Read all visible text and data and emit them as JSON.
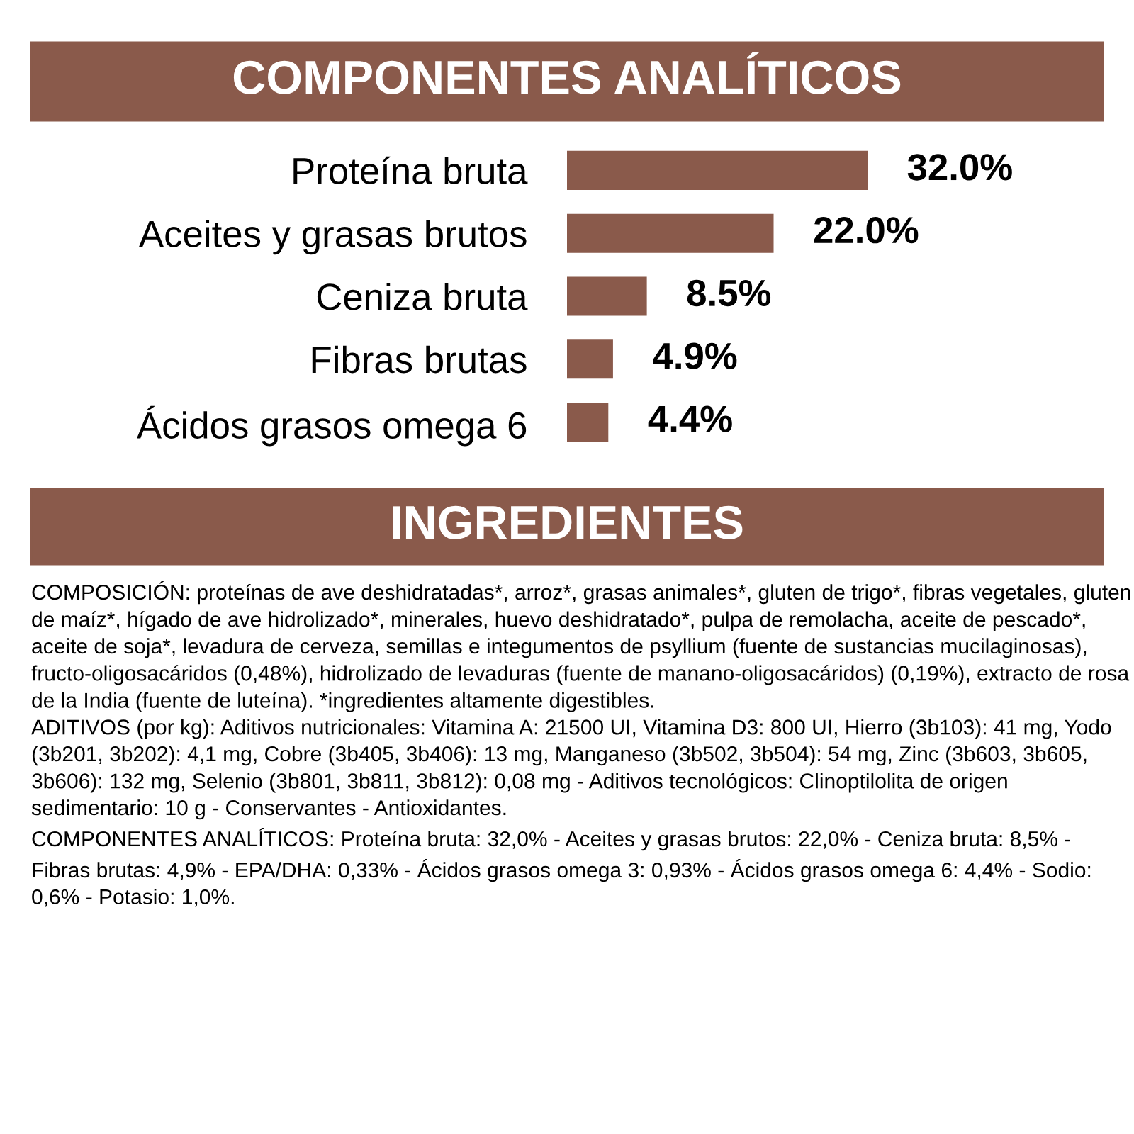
{
  "chart_data": {
    "type": "bar",
    "orientation": "horizontal",
    "title": "COMPONENTES ANALÍTICOS",
    "categories": [
      "Proteína bruta",
      "Aceites y grasas brutos",
      "Ceniza bruta",
      "Fibras brutas",
      "Ácidos grasos omega 6"
    ],
    "values": [
      32.0,
      22.0,
      8.5,
      4.9,
      4.4
    ],
    "value_labels": [
      "32.0%",
      "22.0%",
      "8.5%",
      "4.9%",
      "4.4%"
    ],
    "color": "#8a5a4b",
    "annotations": [
      "INGREDIENTES",
      "COMPOSICIÓN: proteínas de ave deshidratadas*, arroz*, grasas animales*, gluten de trigo*, fibras vegetales, gluten de maíz*, hígado de ave hidrolizado*, minerales, huevo deshidratado*, pulpa de remolacha, aceite de pescado*, aceite de soja*, levadura de cerveza, semillas e integumentos de psyllium (fuente de sustancias mucilaginosas), fructo-oligosacáridos (0,48%), hidrolizado de levaduras (fuente de manano-oligosacáridos) (0,19%), extracto de rosa de la India (fuente de luteína). *ingredientes altamente digestibles.",
      "ADITIVOS (por kg): Aditivos nutricionales: Vitamina A: 21500 UI, Vitamina D3: 800 UI, Hierro (3b103): 41 mg, Yodo (3b201, 3b202): 4,1 mg, Cobre (3b405, 3b406): 13 mg, Manganeso (3b502, 3b504): 54 mg, Zinc (3b603, 3b605, 3b606): 132 mg, Selenio (3b801, 3b811, 3b812): 0,08 mg - Aditivos tecnológicos: Clinoptilolita de origen sedimentario: 10 g - Conservantes - Antioxidantes.",
      "COMPONENTES ANALÍTICOS: Proteína bruta: 32,0% - Aceites y grasas brutos: 22,0% - Ceniza bruta: 8,5% - Fibras brutas: 4,9% - EPA/DHA: 0,33% - Ácidos grasos omega 3: 0,93% - Ácidos grasos omega 6: 4,4% - Sodio: 0,6% - Potasio: 1,0%."
    ]
  }
}
